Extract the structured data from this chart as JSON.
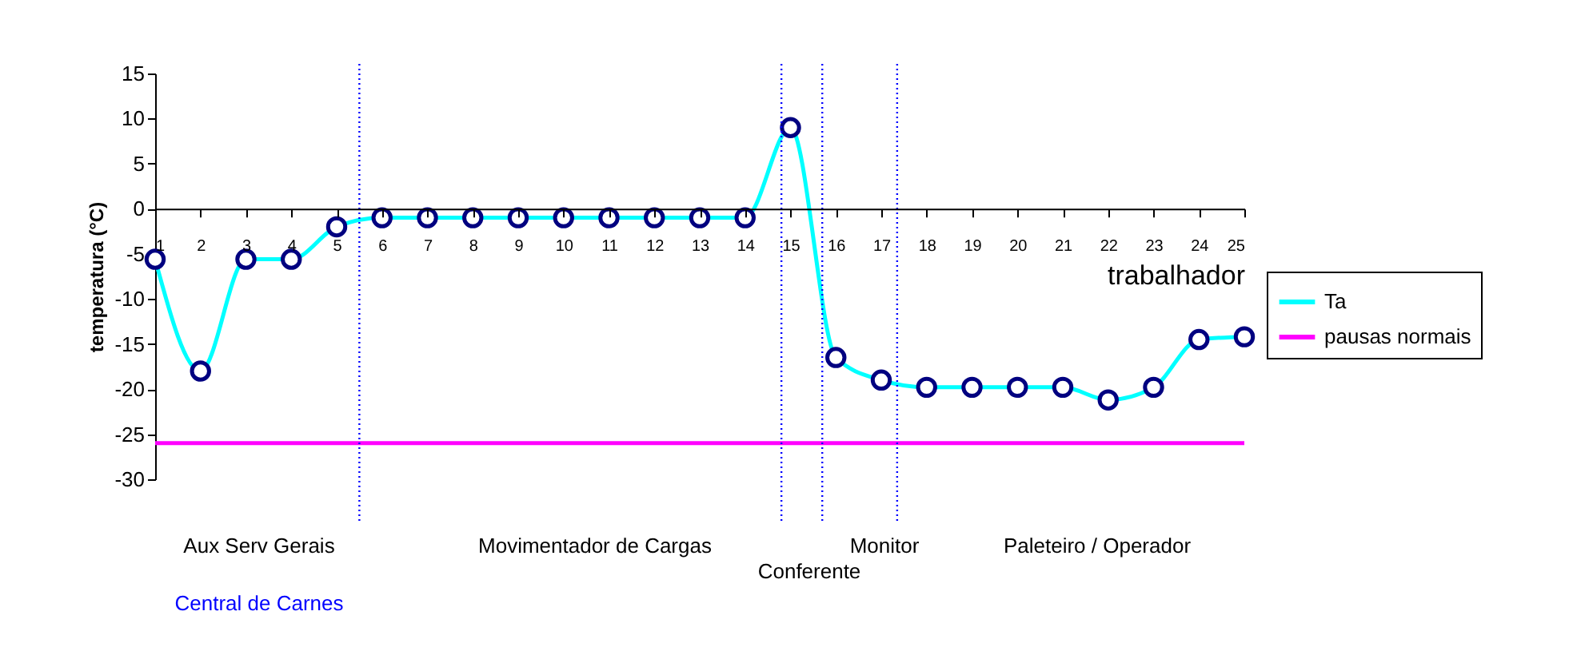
{
  "chart_data": {
    "type": "line",
    "x": [
      1,
      2,
      3,
      4,
      5,
      6,
      7,
      8,
      9,
      10,
      11,
      12,
      13,
      14,
      15,
      16,
      17,
      18,
      19,
      20,
      21,
      22,
      23,
      24,
      25
    ],
    "xlim": [
      1,
      25
    ],
    "xticks": [
      1,
      2,
      3,
      4,
      5,
      6,
      7,
      8,
      9,
      10,
      11,
      12,
      13,
      14,
      15,
      16,
      17,
      18,
      19,
      20,
      21,
      22,
      23,
      24,
      25
    ],
    "ylim": [
      -30,
      15
    ],
    "yticks": [
      -30,
      -25,
      -20,
      -15,
      -10,
      -5,
      0,
      5,
      10,
      15
    ],
    "xlabel": "trabalhador",
    "ylabel": "temperatura (°C)",
    "series": [
      {
        "name": "Ta",
        "color": "#00ffff",
        "marker": "circle",
        "values": [
          -5.6,
          -18,
          -5.6,
          -5.6,
          -2,
          -1,
          -1,
          -1,
          -1,
          -1,
          -1,
          -1,
          -1,
          -1,
          9,
          -16.5,
          -19,
          -19.8,
          -19.8,
          -19.8,
          -19.8,
          -21.2,
          -19.8,
          -14.5,
          -14.2
        ]
      },
      {
        "name": "pausas normais",
        "color": "#ff00ff",
        "marker": "none",
        "values": [
          -26,
          -26,
          -26,
          -26,
          -26,
          -26,
          -26,
          -26,
          -26,
          -26,
          -26,
          -26,
          -26,
          -26,
          -26,
          -26,
          -26,
          -26,
          -26,
          -26,
          -26,
          -26,
          -26,
          -26,
          -26
        ]
      }
    ],
    "ref_lines": [
      {
        "axis": "x",
        "value": 5.5,
        "color": "#0000ff",
        "line_style": "dotted"
      },
      {
        "axis": "x",
        "value": 14.8,
        "color": "#0000ff",
        "line_style": "dotted"
      },
      {
        "axis": "x",
        "value": 15.7,
        "color": "#0000ff",
        "line_style": "dotted"
      },
      {
        "axis": "x",
        "value": 17.35,
        "color": "#0000ff",
        "line_style": "dotted"
      }
    ],
    "annotations": [
      "Aux Serv Gerais",
      "Movimentador de Cargas",
      "Conferente",
      "Monitor",
      "Paleteiro / Operador",
      "Central de Carnes"
    ],
    "grid": false,
    "legend": "right",
    "line_style": "solid"
  }
}
